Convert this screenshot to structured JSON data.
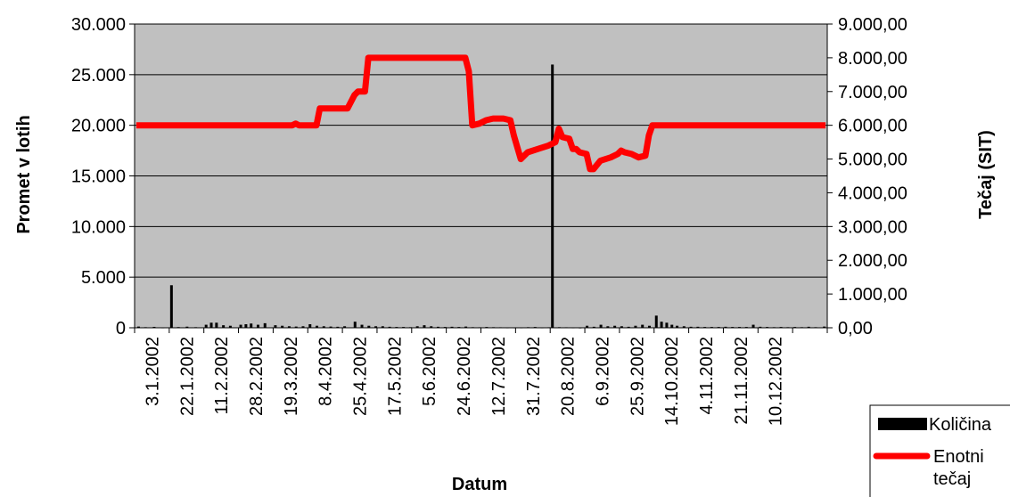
{
  "chart_data": {
    "type": "bar+line",
    "title": "",
    "xlabel": "Datum",
    "ylabel_left": "Promet v lotih",
    "ylabel_right": "Tečaj (SIT)",
    "ylim_left": [
      0,
      30000
    ],
    "ylim_right": [
      0,
      9000
    ],
    "y_ticks_left": [
      "0",
      "5.000",
      "10.000",
      "15.000",
      "20.000",
      "25.000",
      "30.000"
    ],
    "y_ticks_right": [
      "0,00",
      "1.000,00",
      "2.000,00",
      "3.000,00",
      "4.000,00",
      "5.000,00",
      "6.000,00",
      "7.000,00",
      "8.000,00",
      "9.000,00"
    ],
    "x_tick_labels": [
      "3.1.2002",
      "22.1.2002",
      "11.2.2002",
      "28.2.2002",
      "19.3.2002",
      "8.4.2002",
      "25.4.2002",
      "17.5.2002",
      "5.6.2002",
      "24.6.2002",
      "12.7.2002",
      "31.7.2002",
      "20.8.2002",
      "6.9.2002",
      "25.9.2002",
      "14.10.2002",
      "4.11.2002",
      "21.11.2002",
      "10.12.2002"
    ],
    "grid": true,
    "legend": "bottom-right",
    "plot_background": "#c0c0c0",
    "series": [
      {
        "name": "Količina",
        "type": "bar",
        "axis": "left",
        "color": "#000000",
        "note_values": "trading volume in lots, positioned by tick index (0..19)",
        "points": [
          [
            0.05,
            120
          ],
          [
            0.25,
            60
          ],
          [
            0.5,
            90
          ],
          [
            0.75,
            40
          ],
          [
            1.0,
            4200
          ],
          [
            1.2,
            70
          ],
          [
            1.45,
            110
          ],
          [
            1.7,
            60
          ],
          [
            2.0,
            300
          ],
          [
            2.15,
            500
          ],
          [
            2.3,
            500
          ],
          [
            2.5,
            250
          ],
          [
            2.7,
            200
          ],
          [
            3.0,
            300
          ],
          [
            3.15,
            350
          ],
          [
            3.3,
            420
          ],
          [
            3.5,
            300
          ],
          [
            3.7,
            450
          ],
          [
            4.0,
            250
          ],
          [
            4.2,
            200
          ],
          [
            4.4,
            150
          ],
          [
            4.6,
            120
          ],
          [
            4.8,
            150
          ],
          [
            5.0,
            350
          ],
          [
            5.2,
            200
          ],
          [
            5.4,
            150
          ],
          [
            5.6,
            120
          ],
          [
            5.8,
            100
          ],
          [
            6.0,
            150
          ],
          [
            6.3,
            600
          ],
          [
            6.5,
            300
          ],
          [
            6.7,
            200
          ],
          [
            6.9,
            150
          ],
          [
            7.1,
            150
          ],
          [
            7.3,
            100
          ],
          [
            7.5,
            80
          ],
          [
            7.7,
            80
          ],
          [
            7.9,
            60
          ],
          [
            8.1,
            150
          ],
          [
            8.3,
            250
          ],
          [
            8.5,
            150
          ],
          [
            8.7,
            100
          ],
          [
            8.9,
            80
          ],
          [
            9.1,
            100
          ],
          [
            9.3,
            80
          ],
          [
            9.5,
            120
          ],
          [
            9.7,
            60
          ],
          [
            9.9,
            50
          ],
          [
            10.1,
            80
          ],
          [
            10.3,
            60
          ],
          [
            10.5,
            50
          ],
          [
            10.7,
            40
          ],
          [
            10.9,
            40
          ],
          [
            11.1,
            40
          ],
          [
            11.3,
            60
          ],
          [
            11.5,
            80
          ],
          [
            11.7,
            40
          ],
          [
            11.9,
            50
          ],
          [
            12.0,
            26000
          ],
          [
            12.2,
            60
          ],
          [
            12.4,
            50
          ],
          [
            12.6,
            40
          ],
          [
            12.8,
            30
          ],
          [
            13.0,
            200
          ],
          [
            13.2,
            100
          ],
          [
            13.4,
            300
          ],
          [
            13.6,
            150
          ],
          [
            13.8,
            200
          ],
          [
            14.0,
            150
          ],
          [
            14.2,
            100
          ],
          [
            14.4,
            200
          ],
          [
            14.6,
            300
          ],
          [
            14.8,
            200
          ],
          [
            15.0,
            1200
          ],
          [
            15.15,
            600
          ],
          [
            15.3,
            500
          ],
          [
            15.45,
            300
          ],
          [
            15.6,
            200
          ],
          [
            15.8,
            150
          ],
          [
            16.0,
            100
          ],
          [
            16.2,
            100
          ],
          [
            16.4,
            80
          ],
          [
            16.6,
            80
          ],
          [
            16.8,
            80
          ],
          [
            17.0,
            100
          ],
          [
            17.2,
            80
          ],
          [
            17.4,
            80
          ],
          [
            17.6,
            80
          ],
          [
            17.8,
            300
          ],
          [
            18.0,
            100
          ],
          [
            18.2,
            80
          ],
          [
            18.4,
            60
          ],
          [
            18.6,
            80
          ],
          [
            18.8,
            60
          ],
          [
            19.0,
            80
          ],
          [
            19.2,
            60
          ],
          [
            19.4,
            100
          ],
          [
            19.6,
            60
          ],
          [
            19.85,
            120
          ]
        ]
      },
      {
        "name": "Enotni tečaj",
        "type": "line",
        "axis": "right",
        "color": "#ff0000",
        "note_values": "unit price in SIT, positioned by tick index (0..19)",
        "points": [
          [
            0,
            6000
          ],
          [
            4.5,
            6000
          ],
          [
            4.6,
            6050
          ],
          [
            4.7,
            6000
          ],
          [
            5.2,
            6000
          ],
          [
            5.3,
            6500
          ],
          [
            6.1,
            6500
          ],
          [
            6.3,
            6900
          ],
          [
            6.4,
            7000
          ],
          [
            6.6,
            7000
          ],
          [
            6.7,
            8000
          ],
          [
            9.5,
            8000
          ],
          [
            9.6,
            7600
          ],
          [
            9.7,
            6000
          ],
          [
            9.9,
            6050
          ],
          [
            10.1,
            6150
          ],
          [
            10.3,
            6200
          ],
          [
            10.6,
            6200
          ],
          [
            10.8,
            6150
          ],
          [
            10.9,
            5700
          ],
          [
            11.1,
            5000
          ],
          [
            11.3,
            5200
          ],
          [
            11.6,
            5300
          ],
          [
            11.9,
            5400
          ],
          [
            12.1,
            5500
          ],
          [
            12.2,
            5900
          ],
          [
            12.3,
            5650
          ],
          [
            12.5,
            5600
          ],
          [
            12.6,
            5300
          ],
          [
            12.7,
            5300
          ],
          [
            12.8,
            5200
          ],
          [
            13.0,
            5150
          ],
          [
            13.1,
            4700
          ],
          [
            13.2,
            4700
          ],
          [
            13.4,
            4950
          ],
          [
            13.7,
            5050
          ],
          [
            13.9,
            5150
          ],
          [
            14.0,
            5250
          ],
          [
            14.1,
            5200
          ],
          [
            14.3,
            5150
          ],
          [
            14.5,
            5050
          ],
          [
            14.7,
            5100
          ],
          [
            14.8,
            5700
          ],
          [
            14.9,
            6000
          ],
          [
            19.9,
            6000
          ]
        ]
      }
    ]
  }
}
